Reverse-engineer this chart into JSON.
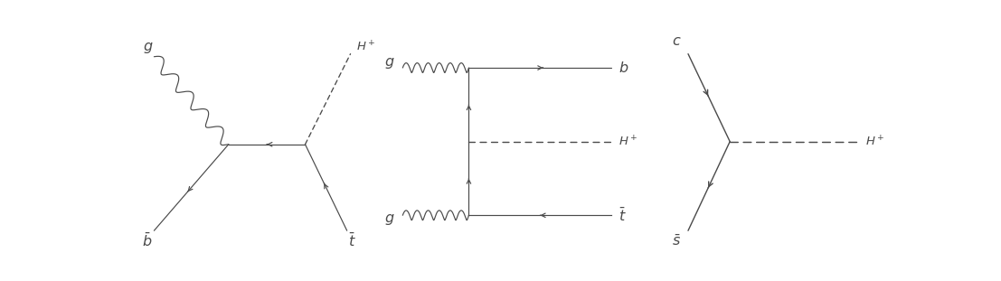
{
  "bg_color": "#ffffff",
  "line_color": "#4a4a4a",
  "fig_width": 11.07,
  "fig_height": 3.11,
  "dpi": 100,
  "label_font_size": 11.5
}
